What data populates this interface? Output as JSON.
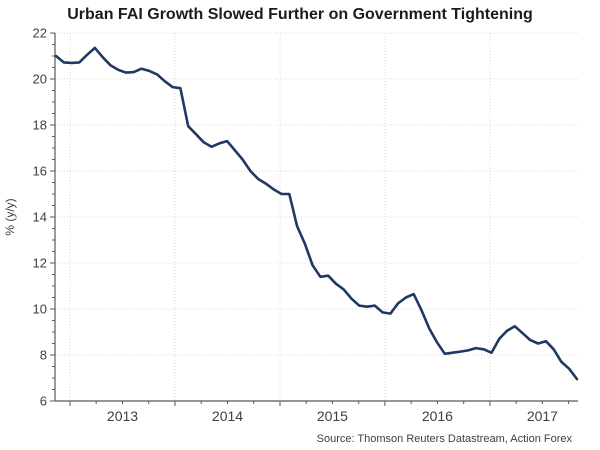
{
  "title": "Urban FAI Growth Slowed Further on Government Tightening",
  "source": "Source: Thomson Reuters Datastream, Action Forex",
  "colors": {
    "line": "#1f3864",
    "title_text": "#1b1b26",
    "tick_text": "#404040",
    "axis": "#595959",
    "gridline": "#d9d9d9",
    "background": "#ffffff"
  },
  "chart_data": {
    "type": "line",
    "title": "Urban FAI Growth Slowed Further on Government Tightening",
    "xlabel": "",
    "ylabel": "% (y/y)",
    "ylim": [
      6,
      22
    ],
    "y_major_step": 2,
    "y_minor_step": 0.5,
    "y_tick_labels": [
      "6",
      "8",
      "10",
      "12",
      "14",
      "16",
      "18",
      "20",
      "22"
    ],
    "grid": "dotted horizontal at majors, dotted vertical at year starts",
    "legend": "none",
    "x_year_labels": [
      "2013",
      "2014",
      "2015",
      "2016",
      "2017"
    ],
    "x_year_tick_idx": [
      1.8,
      15.3,
      28.8,
      42.3,
      55.8
    ],
    "x_minor_ticks_per_year": 4,
    "x_range_note": "monthly points, late 2012 through late 2017",
    "values": [
      21.0,
      20.72,
      20.7,
      20.72,
      21.05,
      21.35,
      20.95,
      20.6,
      20.4,
      20.28,
      20.3,
      20.45,
      20.35,
      20.2,
      19.9,
      19.65,
      19.6,
      17.95,
      17.6,
      17.25,
      17.05,
      17.2,
      17.3,
      16.9,
      16.5,
      16.0,
      15.65,
      15.45,
      15.2,
      15.0,
      15.0,
      13.6,
      12.85,
      11.9,
      11.4,
      11.45,
      11.1,
      10.85,
      10.45,
      10.15,
      10.1,
      10.15,
      9.85,
      9.8,
      10.25,
      10.5,
      10.65,
      9.95,
      9.15,
      8.55,
      8.05,
      8.1,
      8.15,
      8.2,
      8.3,
      8.25,
      8.1,
      8.7,
      9.05,
      9.25,
      8.95,
      8.65,
      8.5,
      8.6,
      8.25,
      7.7,
      7.4,
      6.95
    ]
  }
}
